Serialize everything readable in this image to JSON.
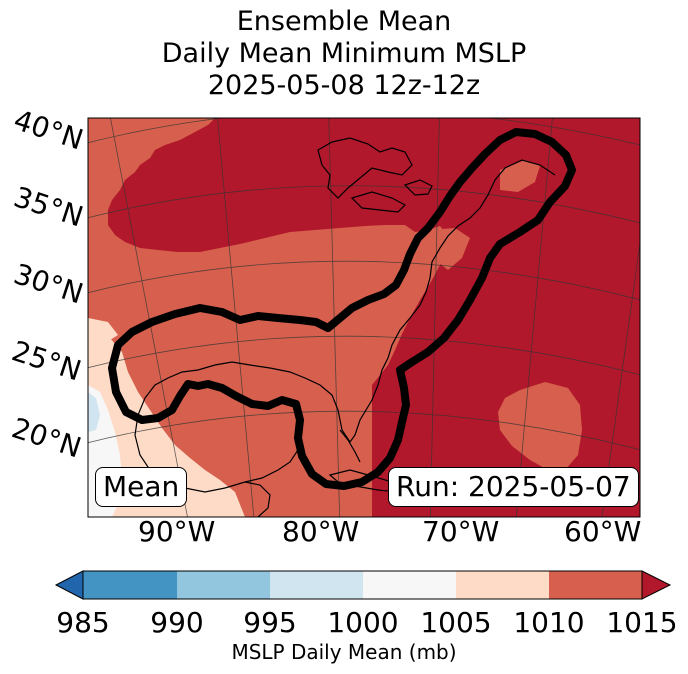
{
  "title": {
    "line1": "Ensemble Mean",
    "line2": "Daily Mean Minimum MSLP",
    "line3": "2025-05-08 12z-12z"
  },
  "map": {
    "latitude_labels": [
      "40°N",
      "35°N",
      "30°N",
      "25°N",
      "20°N"
    ],
    "longitude_labels": [
      "90°W",
      "80°W",
      "70°W",
      "60°W"
    ],
    "mean_tag": "Mean",
    "run_tag": "Run: 2025-05-07",
    "fill_colors": {
      "below_985": "#2166ac",
      "985_990": "#4393c3",
      "990_995": "#92c5de",
      "995_1000": "#d1e5f0",
      "1000_1005": "#f7f7f7",
      "1005_1010": "#fddbc7",
      "1010_1015": "#d6604d",
      "above_1015": "#b2182b"
    }
  },
  "colorbar": {
    "ticks": [
      "985",
      "990",
      "995",
      "1000",
      "1005",
      "1010",
      "1015"
    ],
    "label": "MSLP Daily Mean (mb)",
    "colors": [
      "#4393c3",
      "#92c5de",
      "#d1e5f0",
      "#f7f7f7",
      "#fddbc7",
      "#d6604d"
    ],
    "under_color": "#2166ac",
    "over_color": "#b2182b"
  }
}
